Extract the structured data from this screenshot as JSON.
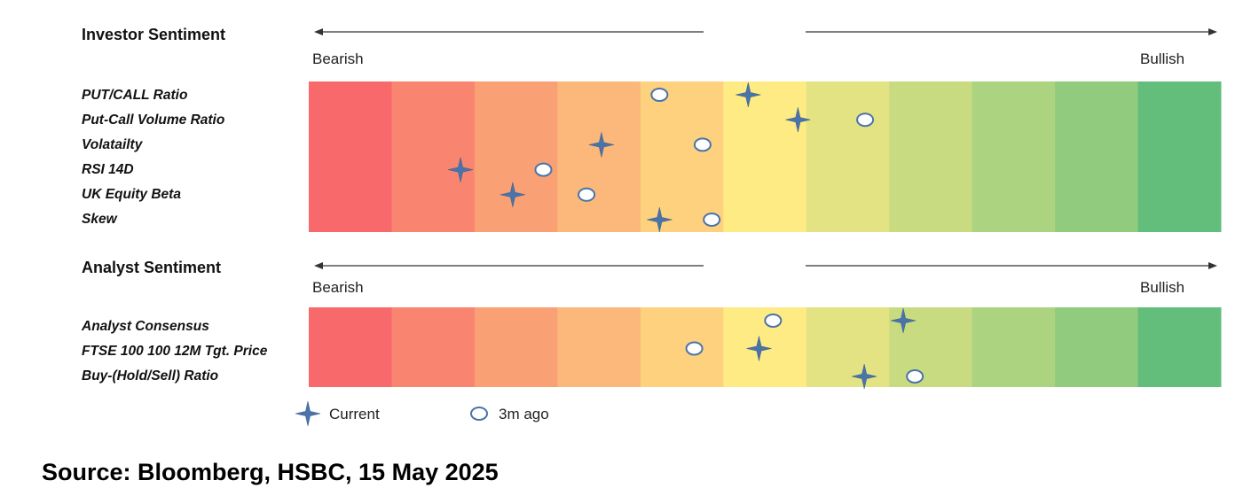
{
  "chart_data": {
    "type": "heatmap",
    "scale": {
      "bands": 11,
      "left_label": "Bearish",
      "right_label": "Bullish"
    },
    "band_colors": [
      "#f8696b",
      "#f98570",
      "#faa075",
      "#fbb87a",
      "#fdd17e",
      "#ffeb84",
      "#e4e383",
      "#c9db81",
      "#acd37f",
      "#91cb7d",
      "#63be7b"
    ],
    "sections": [
      {
        "title": "Investor Sentiment",
        "rows": [
          {
            "label": "PUT/CALL Ratio",
            "current": 5.3,
            "ago_3m": 4.23
          },
          {
            "label": "Put-Call Volume Ratio",
            "current": 5.9,
            "ago_3m": 6.71
          },
          {
            "label": "Volatailty",
            "current": 3.53,
            "ago_3m": 4.75
          },
          {
            "label": "RSI 14D",
            "current": 1.83,
            "ago_3m": 2.83
          },
          {
            "label": "UK Equity Beta",
            "current": 2.46,
            "ago_3m": 3.35
          },
          {
            "label": "Skew",
            "current": 4.23,
            "ago_3m": 4.86
          }
        ]
      },
      {
        "title": "Analyst Sentiment",
        "rows": [
          {
            "label": "Analyst Consensus",
            "current": 7.17,
            "ago_3m": 5.6
          },
          {
            "label": "FTSE 100 100 12M Tgt. Price",
            "current": 5.43,
            "ago_3m": 4.65
          },
          {
            "label": "Buy-(Hold/Sell) Ratio",
            "current": 6.7,
            "ago_3m": 7.31
          }
        ]
      }
    ],
    "legend": {
      "current": "Current",
      "ago_3m": "3m ago"
    },
    "marker_color": "#4a73a8",
    "source": "Source: Bloomberg, HSBC, 15 May 2025"
  }
}
